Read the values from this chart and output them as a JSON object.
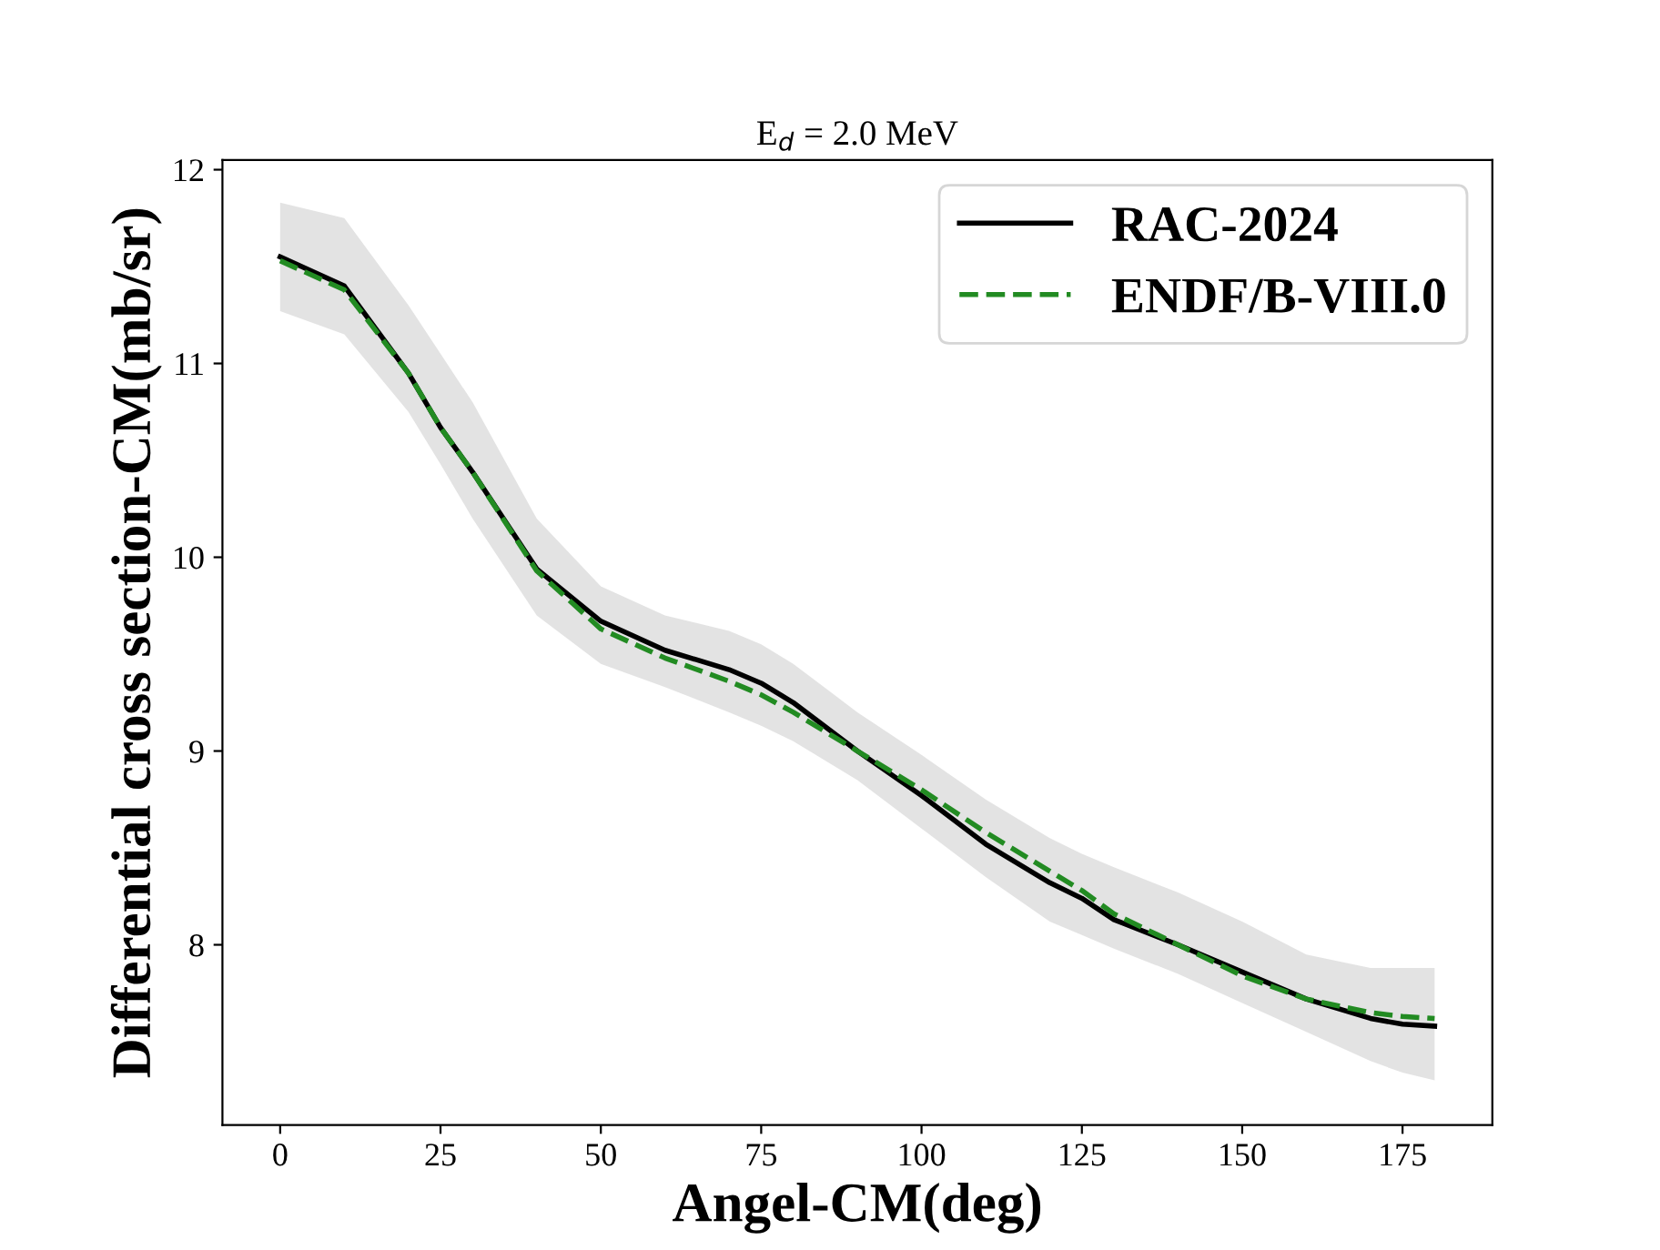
{
  "chart_data": {
    "type": "line",
    "title": "E$_{d}$ = 2.0 MeV",
    "xlabel": "Angel-CM(deg)",
    "ylabel": "Differential cross section-CM(mb/sr)",
    "x": [
      0,
      10,
      20,
      25,
      30,
      40,
      50,
      60,
      70,
      75,
      80,
      90,
      100,
      110,
      120,
      125,
      130,
      140,
      150,
      160,
      170,
      175,
      180
    ],
    "series": [
      {
        "name": "RAC-2024",
        "color": "#000000",
        "line_style": "solid",
        "values": [
          11.55,
          11.4,
          10.95,
          10.67,
          10.44,
          9.94,
          9.67,
          9.52,
          9.42,
          9.35,
          9.25,
          9.0,
          8.77,
          8.52,
          8.32,
          8.24,
          8.13,
          8.0,
          7.86,
          7.72,
          7.62,
          7.59,
          7.58
        ],
        "lower": [
          11.27,
          11.15,
          10.75,
          10.48,
          10.2,
          9.7,
          9.45,
          9.33,
          9.2,
          9.13,
          9.05,
          8.85,
          8.6,
          8.35,
          8.12,
          8.05,
          7.98,
          7.85,
          7.7,
          7.55,
          7.4,
          7.34,
          7.3
        ],
        "upper": [
          11.83,
          11.75,
          11.3,
          11.05,
          10.8,
          10.2,
          9.85,
          9.7,
          9.62,
          9.55,
          9.45,
          9.2,
          8.98,
          8.75,
          8.55,
          8.47,
          8.4,
          8.27,
          8.12,
          7.95,
          7.88,
          7.88,
          7.88
        ]
      },
      {
        "name": "ENDF/B-VIII.0",
        "color": "#228b22",
        "line_style": "dashed",
        "values": [
          11.53,
          11.38,
          10.95,
          10.67,
          10.44,
          9.93,
          9.63,
          9.48,
          9.36,
          9.29,
          9.2,
          9.0,
          8.8,
          8.58,
          8.38,
          8.28,
          8.16,
          8.0,
          7.84,
          7.72,
          7.65,
          7.63,
          7.62
        ]
      }
    ],
    "xlim": [
      -9,
      189
    ],
    "ylim": [
      7.07,
      12.05
    ],
    "xticks": [
      0,
      25,
      50,
      75,
      100,
      125,
      150,
      175
    ],
    "yticks": [
      8,
      9,
      10,
      11,
      12
    ],
    "grid": false,
    "legend": "top right",
    "marker": "none"
  }
}
